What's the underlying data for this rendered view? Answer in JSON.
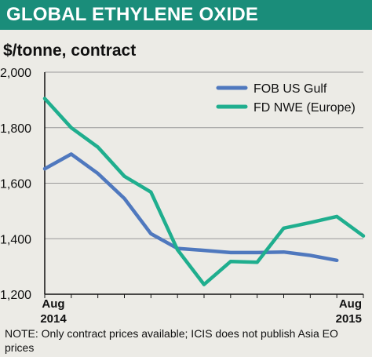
{
  "header": {
    "title": "GLOBAL ETHYLENE OXIDE"
  },
  "chart_data": {
    "type": "line",
    "title": "GLOBAL ETHYLENE OXIDE",
    "ylabel": "$/tonne, contract",
    "ylim": [
      1200,
      2000
    ],
    "yticks": [
      1200,
      1400,
      1600,
      1800,
      2000
    ],
    "ytick_labels": [
      "1,200",
      "1,400",
      "1,600",
      "1,800",
      "2,000"
    ],
    "xlim": [
      0,
      12
    ],
    "x": [
      0,
      1,
      2,
      3,
      4,
      5,
      6,
      7,
      8,
      9,
      10,
      11,
      12
    ],
    "x_tick_labels": [
      {
        "month": "Aug",
        "year": "2014",
        "x": 0
      },
      {
        "month": "Aug",
        "year": "2015",
        "x": 12
      }
    ],
    "grid": "horizontal",
    "legend_position": "top-right",
    "series": [
      {
        "name": "FOB US Gulf",
        "color": "#4f78be",
        "values": [
          1652,
          1705,
          1635,
          1545,
          1418,
          1365,
          1358,
          1350,
          1350,
          1352,
          1340,
          1322,
          null
        ]
      },
      {
        "name": "FD NWE (Europe)",
        "color": "#1fae8e",
        "values": [
          1905,
          1800,
          1730,
          1625,
          1568,
          1360,
          1235,
          1318,
          1315,
          1438,
          1458,
          1480,
          1410
        ]
      }
    ]
  },
  "note": "NOTE: Only contract prices available; ICIS does not publish Asia EO prices"
}
